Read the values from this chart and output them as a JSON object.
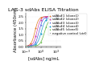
{
  "title": "LAG-3 sdAbs ELISA Titration",
  "xlabel": "[sdAbs] ng/mL",
  "ylabel": "Absorbance (450nm)",
  "xlim": [
    0.001,
    10000
  ],
  "ylim": [
    -0.05,
    2.8
  ],
  "yticks": [
    0,
    0.5,
    1.0,
    1.5,
    2.0,
    2.5
  ],
  "series": [
    {
      "label": "sdAb#1 (clone1)",
      "color": "#e07820",
      "ec50": 0.07,
      "top": 2.5,
      "bottom": 0.04,
      "hill": 1.2
    },
    {
      "label": "sdAb#2 (clone2)",
      "color": "#d040b0",
      "ec50": 0.18,
      "top": 2.52,
      "bottom": 0.04,
      "hill": 1.2
    },
    {
      "label": "sdAb#3 (clone3)",
      "color": "#5060e0",
      "ec50": 0.45,
      "top": 2.48,
      "bottom": 0.04,
      "hill": 1.2
    },
    {
      "label": "sdAb#4 (clone4)",
      "color": "#20a0d0",
      "ec50": 1.2,
      "top": 2.4,
      "bottom": 0.04,
      "hill": 1.1
    },
    {
      "label": "sdAb#5 (clone5)",
      "color": "#60b840",
      "ec50": 5.0,
      "top": 2.3,
      "bottom": 0.04,
      "hill": 1.1
    },
    {
      "label": "negative control (ctrl)",
      "color": "#a0a0a0",
      "ec50": 999999,
      "top": 0.08,
      "bottom": 0.04,
      "hill": 1.0
    }
  ],
  "markers": [
    "o",
    "s",
    "^",
    "D",
    "v",
    "x"
  ],
  "marker_points": [
    0.003,
    0.01,
    0.1,
    1,
    10,
    100,
    1000
  ],
  "title_fontsize": 4.5,
  "label_fontsize": 3.8,
  "tick_fontsize": 3.2,
  "legend_fontsize": 2.8,
  "background_color": "#ffffff"
}
